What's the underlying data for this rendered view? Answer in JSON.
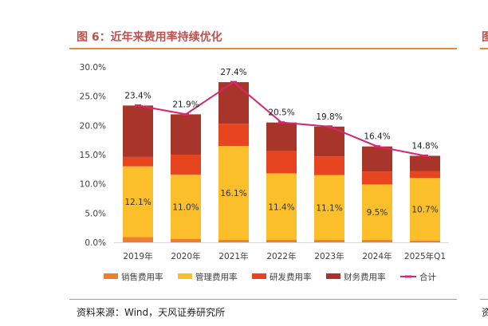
{
  "header": {
    "title": "图 6：近年来费用率持续优化",
    "side_glyph": "图"
  },
  "footer": {
    "source": "资料来源：Wind，天风证券研究所",
    "side_glyph": "资"
  },
  "colors": {
    "sales": "#ed7d31",
    "admin": "#fbbf2b",
    "rnd": "#e6451f",
    "finance": "#a8352a",
    "total": "#d62771",
    "axis": "#d9d9d9",
    "accent": "#e8893a",
    "title": "#c0504d"
  },
  "chart_data": {
    "type": "bar",
    "stacked": true,
    "title": "",
    "categories": [
      "2019年",
      "2020年",
      "2021年",
      "2022年",
      "2023年",
      "2024年",
      "2025年Q1"
    ],
    "ylim": [
      0,
      30
    ],
    "ytick_step": 5,
    "ytick_labels": [
      "0.0%",
      "5.0%",
      "10.0%",
      "15.0%",
      "20.0%",
      "25.0%",
      "30.0%"
    ],
    "series": [
      {
        "key": "sales",
        "name": "销售费用率",
        "values": [
          0.9,
          0.6,
          0.4,
          0.4,
          0.4,
          0.4,
          0.3
        ]
      },
      {
        "key": "admin",
        "name": "管理费用率",
        "values": [
          12.1,
          11.0,
          16.1,
          11.4,
          11.1,
          9.5,
          10.7
        ],
        "labels": [
          "12.1%",
          "11.0%",
          "16.1%",
          "11.4%",
          "11.1%",
          "9.5%",
          "10.7%"
        ]
      },
      {
        "key": "rnd",
        "name": "研发费用率",
        "values": [
          1.6,
          3.4,
          3.8,
          3.8,
          3.2,
          2.2,
          1.2
        ]
      },
      {
        "key": "finance",
        "name": "财务费用率",
        "values": [
          8.8,
          6.9,
          7.1,
          4.9,
          5.1,
          4.3,
          2.6
        ]
      }
    ],
    "total": {
      "name": "合计",
      "values": [
        23.4,
        21.9,
        27.4,
        20.5,
        19.8,
        16.4,
        14.8
      ],
      "labels": [
        "23.4%",
        "21.9%",
        "27.4%",
        "20.5%",
        "19.8%",
        "16.4%",
        "14.8%"
      ]
    },
    "legend_position": "bottom"
  }
}
